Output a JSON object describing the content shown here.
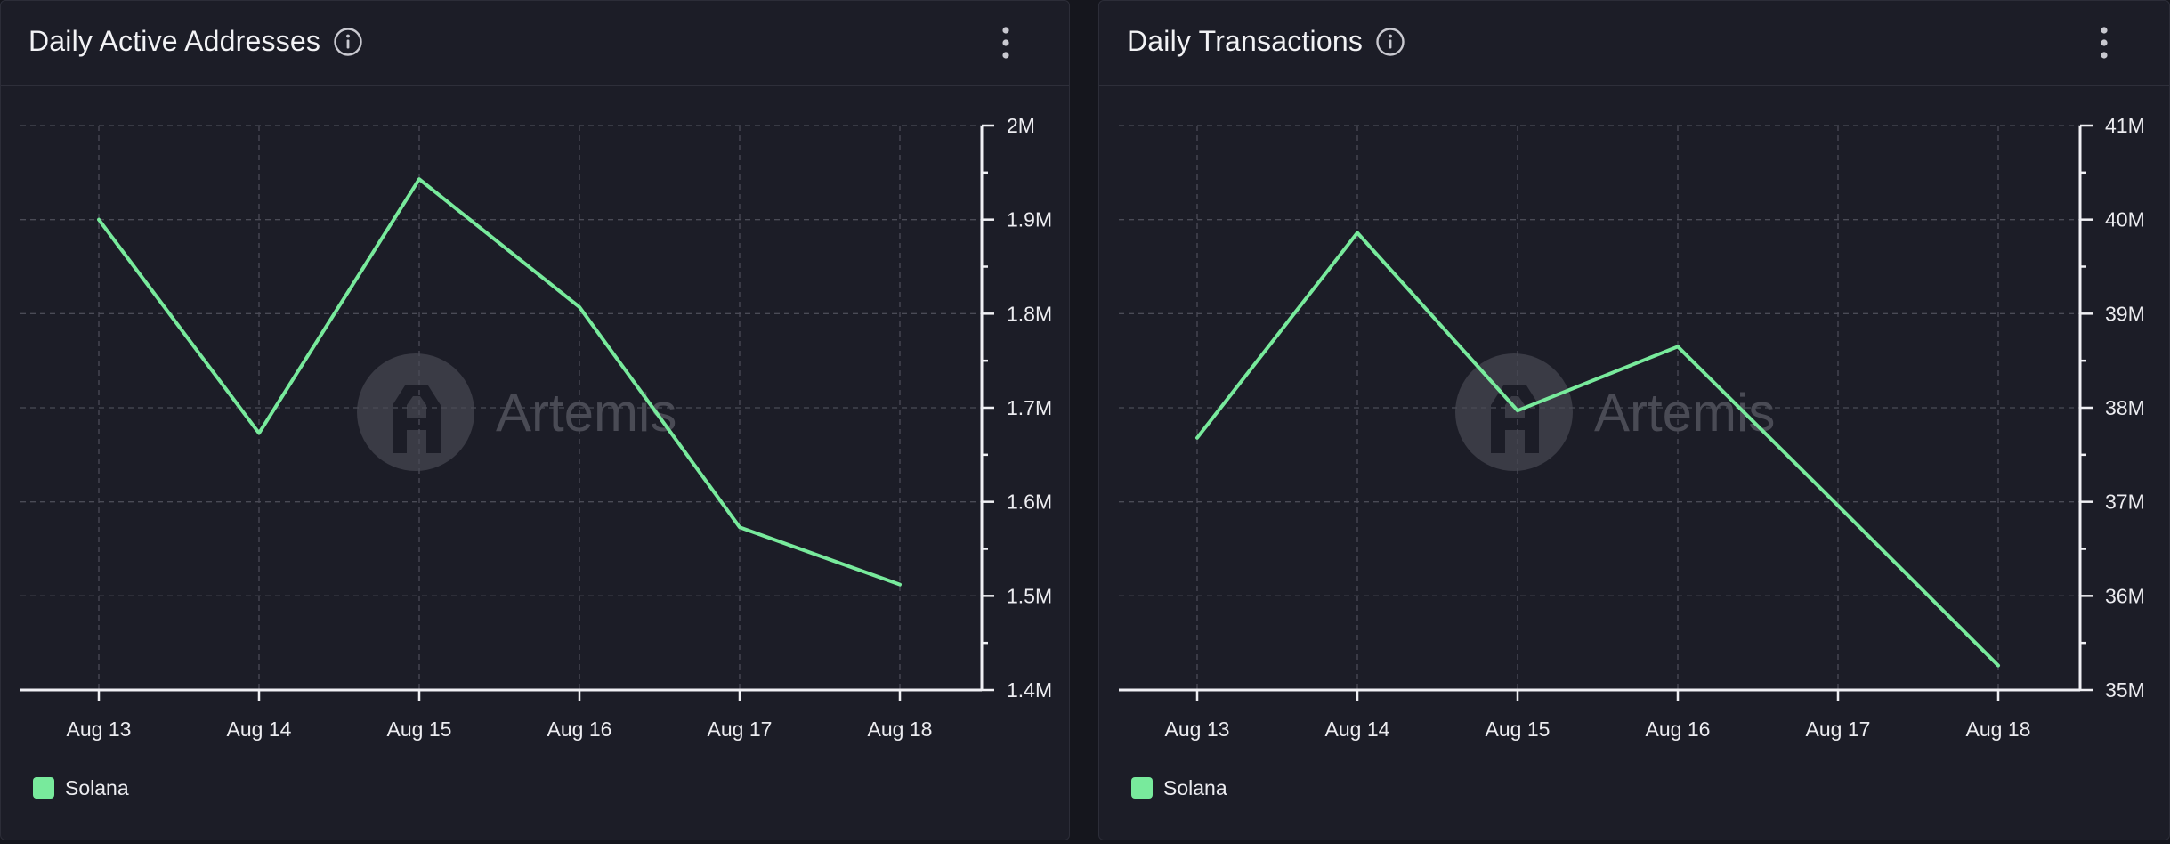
{
  "colors": {
    "line": "#78ea9c",
    "grid": "#4a4b56",
    "axis": "#f0f0f4",
    "tick_text": "#ececf0"
  },
  "watermark": {
    "text": "Artemis"
  },
  "panels": [
    {
      "title": "Daily Active Addresses",
      "info_icon": "info-icon",
      "menu_icon": "kebab-menu-icon",
      "legend": {
        "label": "Solana",
        "color": "#78ea9c"
      },
      "y_tick_labels": [
        "2M",
        "1.9M",
        "1.8M",
        "1.7M",
        "1.6M",
        "1.5M",
        "1.4M"
      ],
      "x_tick_labels": [
        "Aug 13",
        "Aug 14",
        "Aug 15",
        "Aug 16",
        "Aug 17",
        "Aug 18"
      ]
    },
    {
      "title": "Daily Transactions",
      "info_icon": "info-icon",
      "menu_icon": "kebab-menu-icon",
      "legend": {
        "label": "Solana",
        "color": "#78ea9c"
      },
      "y_tick_labels": [
        "41M",
        "40M",
        "39M",
        "38M",
        "37M",
        "36M",
        "35M"
      ],
      "x_tick_labels": [
        "Aug 13",
        "Aug 14",
        "Aug 15",
        "Aug 16",
        "Aug 17",
        "Aug 18"
      ]
    }
  ],
  "chart_data": [
    {
      "type": "line",
      "title": "Daily Active Addresses",
      "xlabel": "",
      "ylabel": "",
      "categories": [
        "Aug 13",
        "Aug 14",
        "Aug 15",
        "Aug 16",
        "Aug 17",
        "Aug 18"
      ],
      "series": [
        {
          "name": "Solana",
          "values": [
            1900000,
            1673000,
            1943000,
            1807000,
            1573000,
            1512000
          ]
        }
      ],
      "ylim": [
        1400000,
        2000000
      ],
      "y_ticks": [
        2000000,
        1900000,
        1800000,
        1700000,
        1600000,
        1500000,
        1400000
      ],
      "y_axis_side": "right",
      "grid": true,
      "legend_position": "bottom-left"
    },
    {
      "type": "line",
      "title": "Daily Transactions",
      "xlabel": "",
      "ylabel": "",
      "categories": [
        "Aug 13",
        "Aug 14",
        "Aug 15",
        "Aug 16",
        "Aug 17",
        "Aug 18"
      ],
      "series": [
        {
          "name": "Solana",
          "values": [
            37680000,
            39860000,
            37970000,
            38650000,
            36960000,
            35260000
          ]
        }
      ],
      "ylim": [
        35000000,
        41000000
      ],
      "y_ticks": [
        41000000,
        40000000,
        39000000,
        38000000,
        37000000,
        36000000,
        35000000
      ],
      "y_axis_side": "right",
      "grid": true,
      "legend_position": "bottom-left"
    }
  ]
}
